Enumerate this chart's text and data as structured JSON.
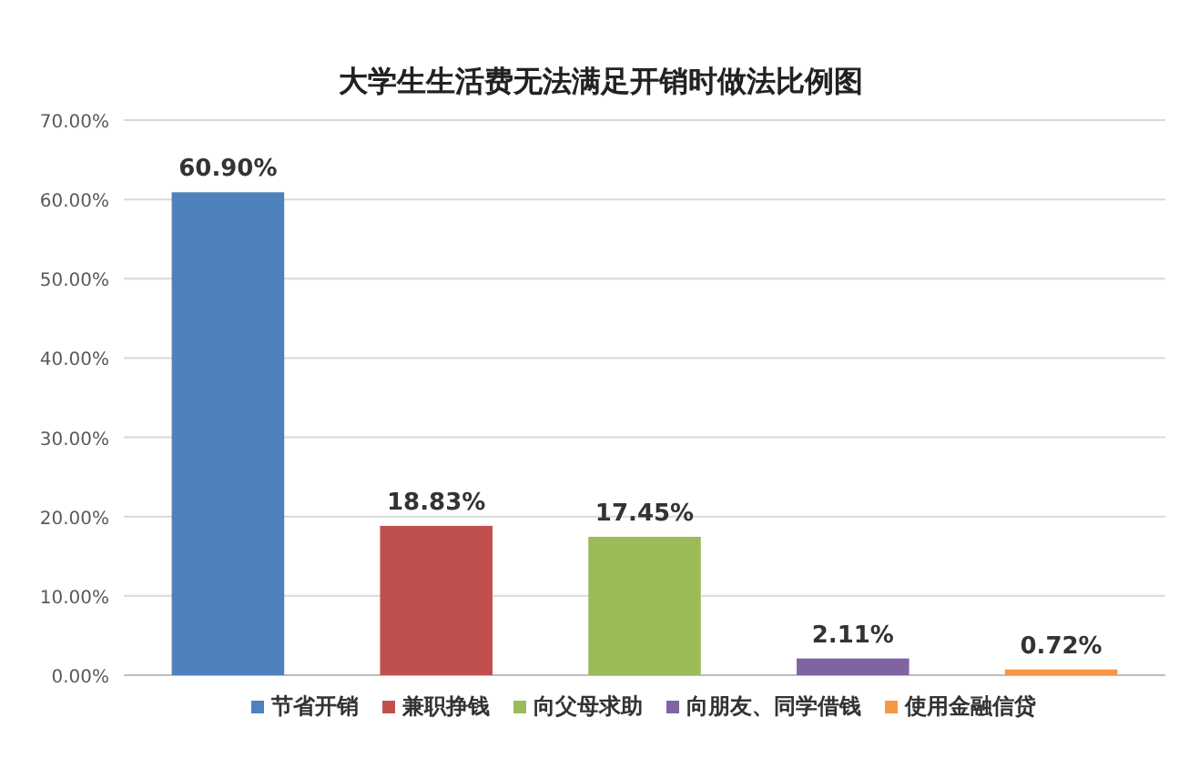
{
  "chart_data": {
    "type": "bar",
    "title": "大学生生活费无法满足开销时做法比例图",
    "categories": [
      null,
      null,
      null,
      null,
      null
    ],
    "series": [
      {
        "name": "节省开销",
        "color": "#4f81bd",
        "values": [
          60.9,
          null,
          null,
          null,
          null
        ],
        "value_labels": [
          "60.90%",
          null,
          null,
          null,
          null
        ]
      },
      {
        "name": "兼职挣钱",
        "color": "#c0504d",
        "values": [
          null,
          18.83,
          null,
          null,
          null
        ],
        "value_labels": [
          null,
          "18.83%",
          null,
          null,
          null
        ]
      },
      {
        "name": "向父母求助",
        "color": "#9bbb59",
        "values": [
          null,
          null,
          17.45,
          null,
          null
        ],
        "value_labels": [
          null,
          null,
          "17.45%",
          null,
          null
        ]
      },
      {
        "name": "向朋友、同学借钱",
        "color": "#8064a2",
        "values": [
          null,
          null,
          null,
          2.11,
          null
        ],
        "value_labels": [
          null,
          null,
          null,
          "2.11%",
          null
        ]
      },
      {
        "name": "使用金融信贷",
        "color": "#f79646",
        "values": [
          null,
          null,
          null,
          null,
          0.72
        ],
        "value_labels": [
          null,
          null,
          null,
          null,
          "0.72%"
        ]
      }
    ],
    "ylim": [
      0,
      70
    ],
    "yticks": [
      {
        "value": 0,
        "label": "0.00%"
      },
      {
        "value": 10,
        "label": "10.00%"
      },
      {
        "value": 20,
        "label": "20.00%"
      },
      {
        "value": 30,
        "label": "30.00%"
      },
      {
        "value": 40,
        "label": "40.00%"
      },
      {
        "value": 50,
        "label": "50.00%"
      },
      {
        "value": 60,
        "label": "60.00%"
      },
      {
        "value": 70,
        "label": "70.00%"
      }
    ],
    "grid": "y",
    "legend": "bottom"
  }
}
